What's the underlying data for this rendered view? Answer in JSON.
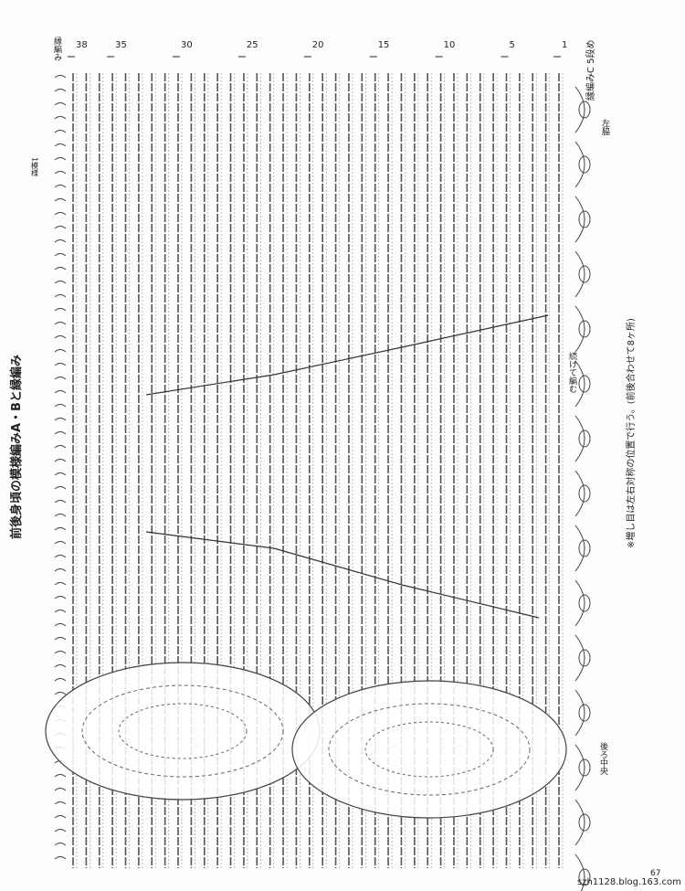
{
  "title": "前後身頃の模様編みA・Bと縁編み",
  "edge_label": "縁編み",
  "row_markers": [
    38,
    35,
    30,
    25,
    20,
    15,
    10,
    5,
    1
  ],
  "edge_c_label": "縁編みC 5段め",
  "left_side": "左脇",
  "one_repeat": "1模様",
  "continue_label": "続けて編む",
  "back_center": "後ろ中央",
  "note": "※増し目は左右対称の位置で行う。(前後合わせて8ヶ所)",
  "watermark": "szh1128.blog.163.com",
  "page_number": "67"
}
